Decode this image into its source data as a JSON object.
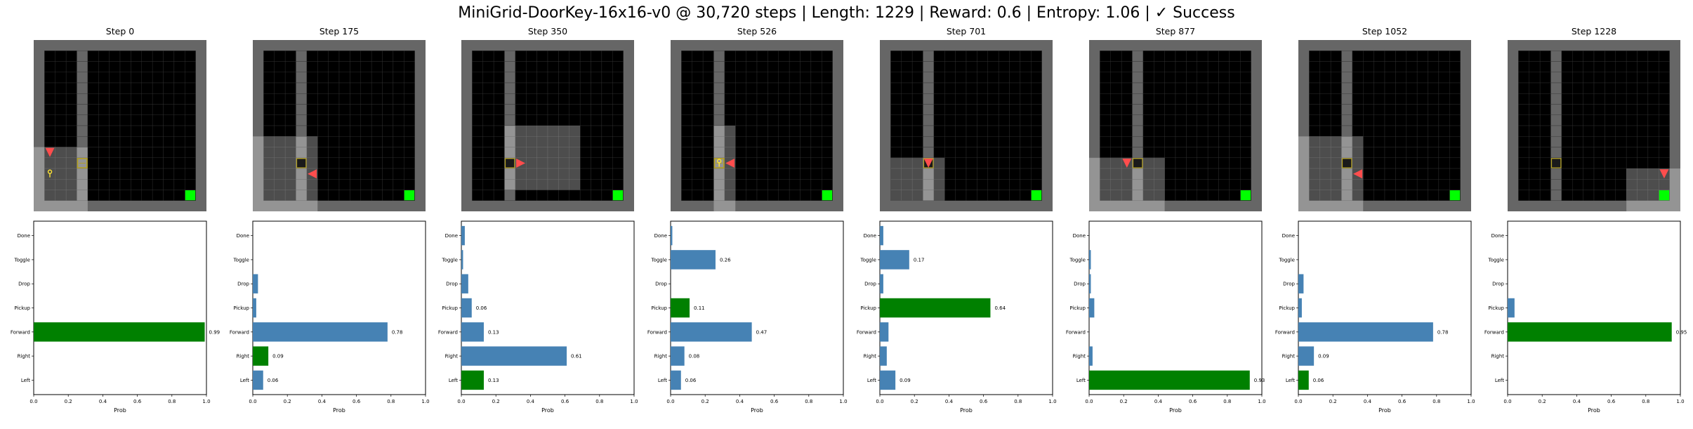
{
  "figure": {
    "title": "MiniGrid-DoorKey-16x16-v0 @ 30,720 steps | Length: 1229 | Reward: 0.6 | Entropy: 1.06 | ✓ Success"
  },
  "colors": {
    "bar_default": "#4682b4",
    "bar_chosen": "#008000",
    "goal": "#00ff00",
    "agent": "#ff4d4d",
    "door": "#b3a020",
    "key": "#ffe433",
    "wall": "#666666",
    "floor": "#000000",
    "visible_cell": "#8c8c8c",
    "grid_line": "#333333"
  },
  "chart_data": [
    {
      "type": "bar",
      "orientation": "horizontal",
      "title": "Step 0",
      "xlabel": "Prob",
      "xlim": [
        0,
        1
      ],
      "xticks": [
        "0.0",
        "0.2",
        "0.4",
        "0.6",
        "0.8",
        "1.0"
      ],
      "categories": [
        "Left",
        "Right",
        "Forward",
        "Pickup",
        "Drop",
        "Toggle",
        "Done"
      ],
      "values": [
        0.0,
        0.0,
        0.99,
        0.0,
        0.0,
        0.0,
        0.0
      ],
      "chosen": "Forward",
      "data_labels": [
        {
          "category": "Forward",
          "text": "0.99"
        }
      ]
    },
    {
      "type": "bar",
      "orientation": "horizontal",
      "title": "Step 175",
      "xlabel": "Prob",
      "xlim": [
        0,
        1
      ],
      "xticks": [
        "0.0",
        "0.2",
        "0.4",
        "0.6",
        "0.8",
        "1.0"
      ],
      "categories": [
        "Left",
        "Right",
        "Forward",
        "Pickup",
        "Drop",
        "Toggle",
        "Done"
      ],
      "values": [
        0.06,
        0.09,
        0.78,
        0.02,
        0.03,
        0.0,
        0.0
      ],
      "chosen": "Right",
      "data_labels": [
        {
          "category": "Left",
          "text": "0.06"
        },
        {
          "category": "Right",
          "text": "0.09"
        },
        {
          "category": "Forward",
          "text": "0.78"
        }
      ]
    },
    {
      "type": "bar",
      "orientation": "horizontal",
      "title": "Step 350",
      "xlabel": "Prob",
      "xlim": [
        0,
        1
      ],
      "xticks": [
        "0.0",
        "0.2",
        "0.4",
        "0.6",
        "0.8",
        "1.0"
      ],
      "categories": [
        "Left",
        "Right",
        "Forward",
        "Pickup",
        "Drop",
        "Toggle",
        "Done"
      ],
      "values": [
        0.13,
        0.61,
        0.13,
        0.06,
        0.04,
        0.01,
        0.02
      ],
      "chosen": "Left",
      "data_labels": [
        {
          "category": "Left",
          "text": "0.13"
        },
        {
          "category": "Right",
          "text": "0.61"
        },
        {
          "category": "Forward",
          "text": "0.13"
        },
        {
          "category": "Pickup",
          "text": "0.06"
        }
      ]
    },
    {
      "type": "bar",
      "orientation": "horizontal",
      "title": "Step 526",
      "xlabel": "Prob",
      "xlim": [
        0,
        1
      ],
      "xticks": [
        "0.0",
        "0.2",
        "0.4",
        "0.6",
        "0.8",
        "1.0"
      ],
      "categories": [
        "Left",
        "Right",
        "Forward",
        "Pickup",
        "Drop",
        "Toggle",
        "Done"
      ],
      "values": [
        0.06,
        0.08,
        0.47,
        0.11,
        0.0,
        0.26,
        0.01
      ],
      "chosen": "Pickup",
      "data_labels": [
        {
          "category": "Left",
          "text": "0.06"
        },
        {
          "category": "Right",
          "text": "0.08"
        },
        {
          "category": "Forward",
          "text": "0.47"
        },
        {
          "category": "Pickup",
          "text": "0.11"
        },
        {
          "category": "Toggle",
          "text": "0.26"
        }
      ]
    },
    {
      "type": "bar",
      "orientation": "horizontal",
      "title": "Step 701",
      "xlabel": "Prob",
      "xlim": [
        0,
        1
      ],
      "xticks": [
        "0.0",
        "0.2",
        "0.4",
        "0.6",
        "0.8",
        "1.0"
      ],
      "categories": [
        "Left",
        "Right",
        "Forward",
        "Pickup",
        "Drop",
        "Toggle",
        "Done"
      ],
      "values": [
        0.09,
        0.04,
        0.05,
        0.64,
        0.02,
        0.17,
        0.02
      ],
      "chosen": "Pickup",
      "data_labels": [
        {
          "category": "Left",
          "text": "0.09"
        },
        {
          "category": "Pickup",
          "text": "0.64"
        },
        {
          "category": "Toggle",
          "text": "0.17"
        }
      ]
    },
    {
      "type": "bar",
      "orientation": "horizontal",
      "title": "Step 877",
      "xlabel": "Prob",
      "xlim": [
        0,
        1
      ],
      "xticks": [
        "0.0",
        "0.2",
        "0.4",
        "0.6",
        "0.8",
        "1.0"
      ],
      "categories": [
        "Left",
        "Right",
        "Forward",
        "Pickup",
        "Drop",
        "Toggle",
        "Done"
      ],
      "values": [
        0.93,
        0.02,
        0.0,
        0.03,
        0.01,
        0.01,
        0.0
      ],
      "chosen": "Left",
      "data_labels": [
        {
          "category": "Left",
          "text": "0.93"
        }
      ]
    },
    {
      "type": "bar",
      "orientation": "horizontal",
      "title": "Step 1052",
      "xlabel": "Prob",
      "xlim": [
        0,
        1
      ],
      "xticks": [
        "0.0",
        "0.2",
        "0.4",
        "0.6",
        "0.8",
        "1.0"
      ],
      "categories": [
        "Left",
        "Right",
        "Forward",
        "Pickup",
        "Drop",
        "Toggle",
        "Done"
      ],
      "values": [
        0.06,
        0.09,
        0.78,
        0.02,
        0.03,
        0.0,
        0.0
      ],
      "chosen": "Left",
      "data_labels": [
        {
          "category": "Left",
          "text": "0.06"
        },
        {
          "category": "Right",
          "text": "0.09"
        },
        {
          "category": "Forward",
          "text": "0.78"
        }
      ]
    },
    {
      "type": "bar",
      "orientation": "horizontal",
      "title": "Step 1228",
      "xlabel": "Prob",
      "xlim": [
        0,
        1
      ],
      "xticks": [
        "0.0",
        "0.2",
        "0.4",
        "0.6",
        "0.8",
        "1.0"
      ],
      "categories": [
        "Left",
        "Right",
        "Forward",
        "Pickup",
        "Drop",
        "Toggle",
        "Done"
      ],
      "values": [
        0.0,
        0.0,
        0.95,
        0.04,
        0.0,
        0.0,
        0.0
      ],
      "chosen": "Forward",
      "data_labels": [
        {
          "category": "Forward",
          "text": "0.95"
        }
      ]
    }
  ],
  "frames": [
    {
      "agent": {
        "col": 1,
        "row": 10,
        "dir": "down"
      },
      "door": {
        "col": 4,
        "row": 11,
        "carrying_key": true
      },
      "key": {
        "col": 1,
        "row": 12
      },
      "view": {
        "col": 0,
        "row": 10,
        "width": 5,
        "height": 6
      }
    },
    {
      "agent": {
        "col": 5,
        "row": 12,
        "dir": "left"
      },
      "door": {
        "col": 4,
        "row": 11,
        "open": true
      },
      "key": null,
      "view": {
        "col": 0,
        "row": 9,
        "width": 6,
        "height": 7
      }
    },
    {
      "agent": {
        "col": 5,
        "row": 11,
        "dir": "right"
      },
      "door": {
        "col": 4,
        "row": 11,
        "open": true
      },
      "key": null,
      "view": {
        "col": 4,
        "row": 8,
        "width": 7,
        "height": 6
      }
    },
    {
      "agent": {
        "col": 5,
        "row": 11,
        "dir": "left"
      },
      "door": {
        "col": 4,
        "row": 11,
        "open": false
      },
      "key": {
        "col": 4,
        "row": 11
      },
      "view": {
        "col": 4,
        "row": 8,
        "width": 2,
        "height": 8
      }
    },
    {
      "agent": {
        "col": 4,
        "row": 11,
        "dir": "down"
      },
      "door": {
        "col": 4,
        "row": 11,
        "open": true
      },
      "key": null,
      "view": {
        "col": 1,
        "row": 11,
        "width": 5,
        "height": 4
      }
    },
    {
      "agent": {
        "col": 3,
        "row": 11,
        "dir": "down"
      },
      "door": {
        "col": 4,
        "row": 11,
        "open": true
      },
      "key": null,
      "view": {
        "col": 0,
        "row": 11,
        "width": 7,
        "height": 5
      }
    },
    {
      "agent": {
        "col": 5,
        "row": 12,
        "dir": "left"
      },
      "door": {
        "col": 4,
        "row": 11,
        "open": true
      },
      "key": null,
      "view": {
        "col": 0,
        "row": 9,
        "width": 6,
        "height": 7
      }
    },
    {
      "agent": {
        "col": 14,
        "row": 12,
        "dir": "down"
      },
      "door": {
        "col": 4,
        "row": 11,
        "open": true
      },
      "key": null,
      "view": {
        "col": 11,
        "row": 12,
        "width": 5,
        "height": 4
      }
    }
  ],
  "env": {
    "grid_cells": 16,
    "wall_col": 4,
    "door_row": 11,
    "goal": {
      "col": 14,
      "row": 14
    }
  }
}
